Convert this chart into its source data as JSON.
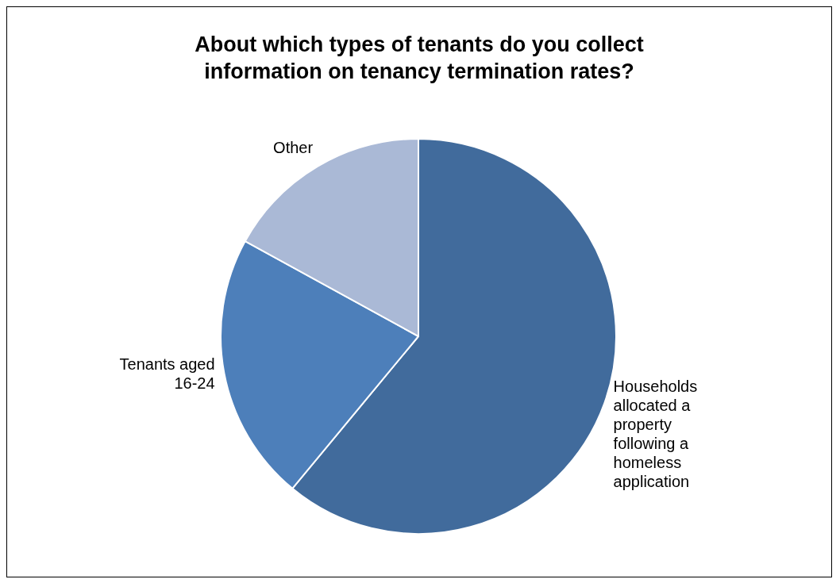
{
  "chart_data": {
    "type": "pie",
    "title": "About which types of tenants do you collect information on tenancy termination rates?",
    "categories": [
      "Households allocated a property following a homeless application",
      "Tenants aged 16-24",
      "Other"
    ],
    "values": [
      61,
      22,
      17
    ],
    "colors": [
      "#416b9c",
      "#4d7fba",
      "#aab9d6"
    ],
    "legend": false
  }
}
